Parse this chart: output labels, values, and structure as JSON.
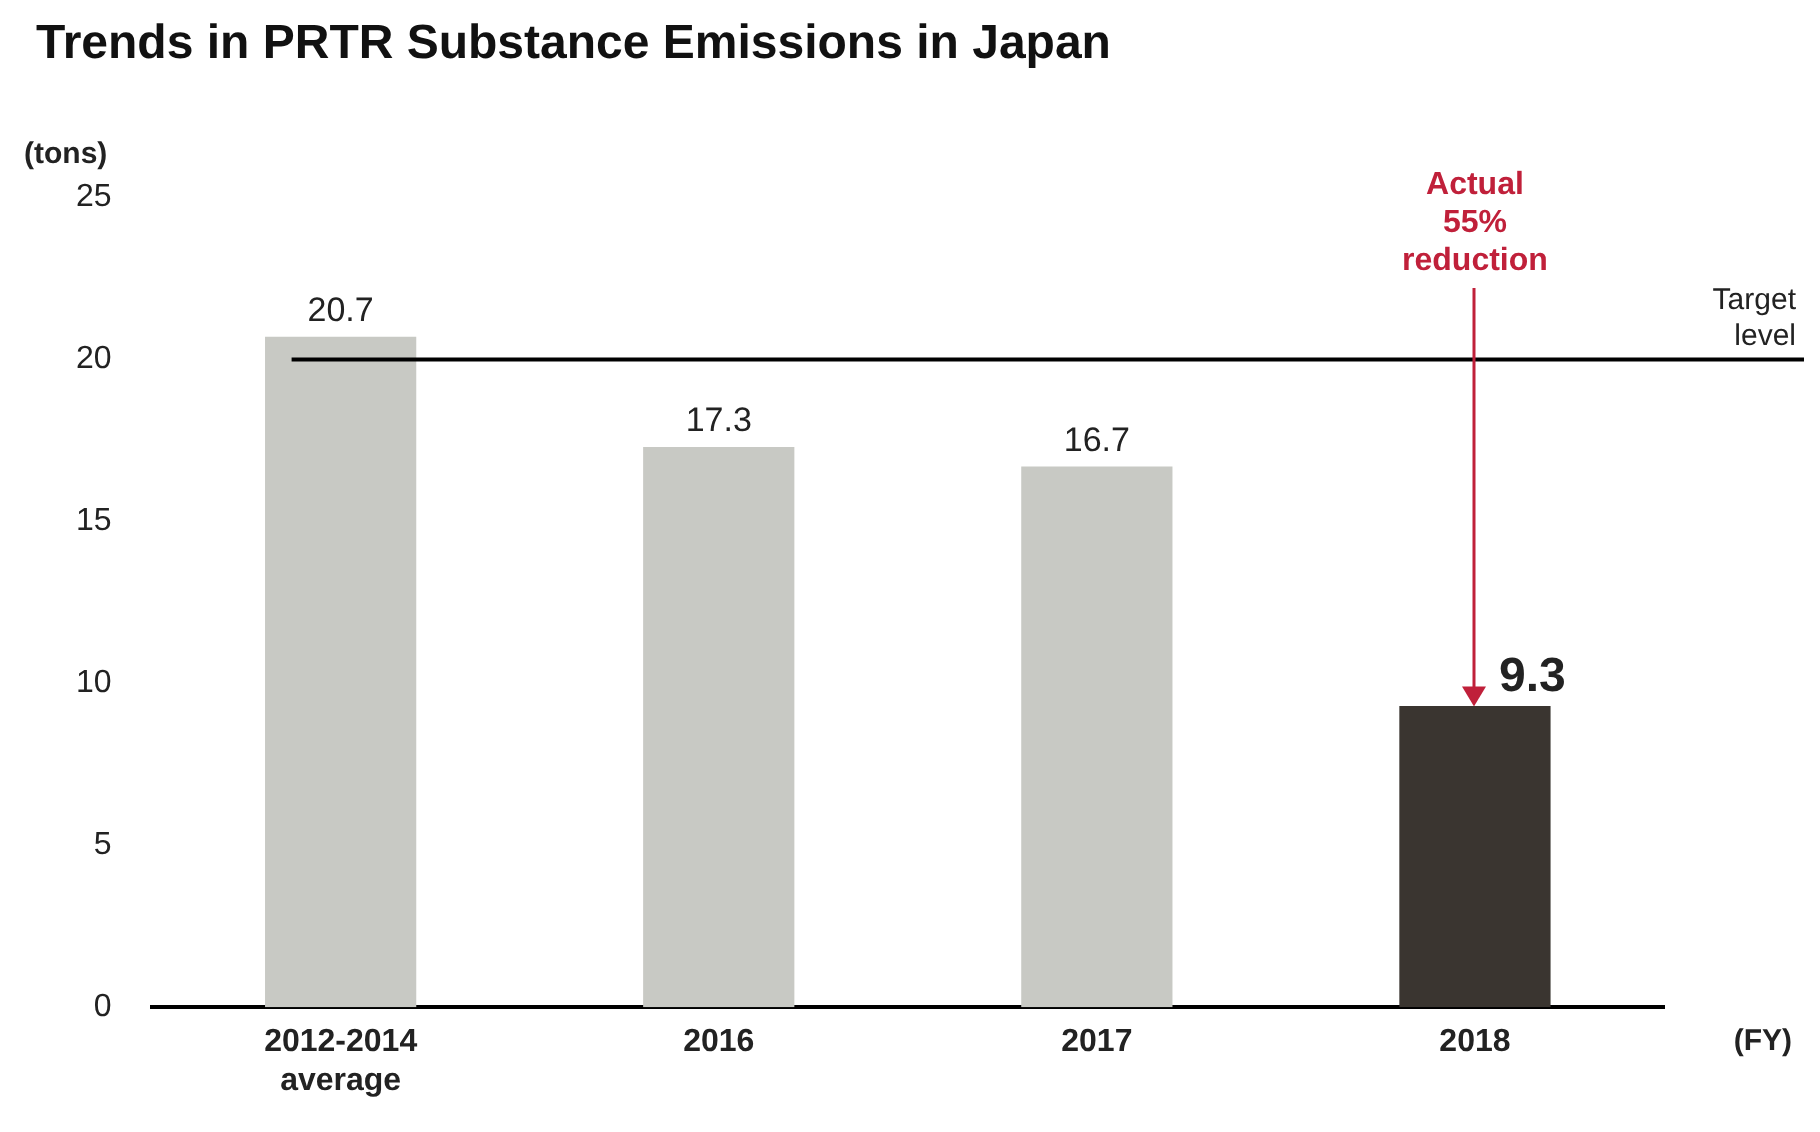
{
  "chart_data": {
    "type": "bar",
    "title": "Trends in PRTR Substance Emissions in Japan",
    "ylabel": "(tons)",
    "xlabel": "(FY)",
    "categories": [
      "2012-2014\naverage",
      "2016",
      "2017",
      "2018"
    ],
    "values": [
      20.7,
      17.3,
      16.7,
      9.3
    ],
    "colors": [
      "#c8c9c4",
      "#c8c9c4",
      "#c8c9c4",
      "#3a3530"
    ],
    "ylim": [
      0,
      25
    ],
    "yticks": [
      0,
      5,
      10,
      15,
      20,
      25
    ],
    "grid": false,
    "legend": false,
    "data_labels": true,
    "ref_lines": [
      {
        "axis": "y",
        "value": 20,
        "label": "Target\nlevel",
        "color": "#000000"
      }
    ],
    "annotations": [
      {
        "text": "Actual\n55%\nreduction",
        "x": "2018",
        "y": 9.3
      }
    ]
  }
}
